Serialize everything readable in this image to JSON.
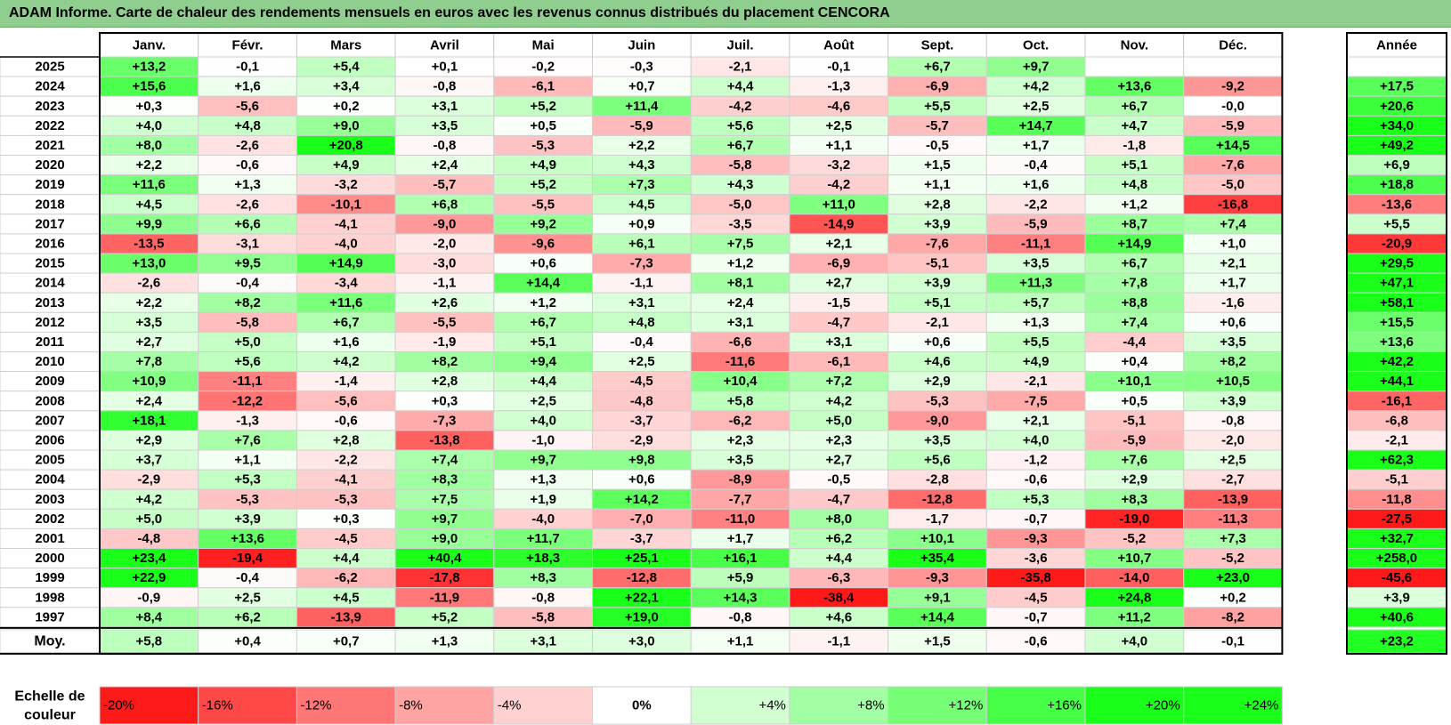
{
  "title": "ADAM Informe. Carte de chaleur des rendements mensuels en euros avec les revenus connus distribués du placement CENCORA",
  "chart_data": {
    "type": "heatmap",
    "months": [
      "Janv.",
      "Févr.",
      "Mars",
      "Avril",
      "Mai",
      "Juin",
      "Juil.",
      "Août",
      "Sept.",
      "Oct.",
      "Nov.",
      "Déc."
    ],
    "year_header": "Année",
    "rows": [
      {
        "label": "2025",
        "values": [
          "+13,2",
          "-0,1",
          "+5,4",
          "+0,1",
          "-0,2",
          "-0,3",
          "-2,1",
          "-0,1",
          "+6,7",
          "+9,7",
          "",
          ""
        ],
        "year": ""
      },
      {
        "label": "2024",
        "values": [
          "+15,6",
          "+1,6",
          "+3,4",
          "-0,8",
          "-6,1",
          "+0,7",
          "+4,4",
          "-1,3",
          "-6,9",
          "+4,2",
          "+13,6",
          "-9,2"
        ],
        "year": "+17,5"
      },
      {
        "label": "2023",
        "values": [
          "+0,3",
          "-5,6",
          "+0,2",
          "+3,1",
          "+5,2",
          "+11,4",
          "-4,2",
          "-4,6",
          "+5,5",
          "+2,5",
          "+6,7",
          "-0,0"
        ],
        "year": "+20,6"
      },
      {
        "label": "2022",
        "values": [
          "+4,0",
          "+4,8",
          "+9,0",
          "+3,5",
          "+0,5",
          "-5,9",
          "+5,6",
          "+2,5",
          "-5,7",
          "+14,7",
          "+4,7",
          "-5,9"
        ],
        "year": "+34,0"
      },
      {
        "label": "2021",
        "values": [
          "+8,0",
          "-2,6",
          "+20,8",
          "-0,8",
          "-5,3",
          "+2,2",
          "+6,7",
          "+1,1",
          "-0,5",
          "+1,7",
          "-1,8",
          "+14,5"
        ],
        "year": "+49,2"
      },
      {
        "label": "2020",
        "values": [
          "+2,2",
          "-0,6",
          "+4,9",
          "+2,4",
          "+4,9",
          "+4,3",
          "-5,8",
          "-3,2",
          "+1,5",
          "-0,4",
          "+5,1",
          "-7,6"
        ],
        "year": "+6,9"
      },
      {
        "label": "2019",
        "values": [
          "+11,6",
          "+1,3",
          "-3,2",
          "-5,7",
          "+5,2",
          "+7,3",
          "+4,3",
          "-4,2",
          "+1,1",
          "+1,6",
          "+4,8",
          "-5,0"
        ],
        "year": "+18,8"
      },
      {
        "label": "2018",
        "values": [
          "+4,5",
          "-2,6",
          "-10,1",
          "+6,8",
          "-5,5",
          "+4,5",
          "-5,0",
          "+11,0",
          "+2,8",
          "-2,2",
          "+1,2",
          "-16,8"
        ],
        "year": "-13,6"
      },
      {
        "label": "2017",
        "values": [
          "+9,9",
          "+6,6",
          "-4,1",
          "-9,0",
          "+9,2",
          "+0,9",
          "-3,5",
          "-14,9",
          "+3,9",
          "-5,9",
          "+8,7",
          "+7,4"
        ],
        "year": "+5,5"
      },
      {
        "label": "2016",
        "values": [
          "-13,5",
          "-3,1",
          "-4,0",
          "-2,0",
          "-9,6",
          "+6,1",
          "+7,5",
          "+2,1",
          "-7,6",
          "-11,1",
          "+14,9",
          "+1,0"
        ],
        "year": "-20,9"
      },
      {
        "label": "2015",
        "values": [
          "+13,0",
          "+9,5",
          "+14,9",
          "-3,0",
          "+0,6",
          "-7,3",
          "+1,2",
          "-6,9",
          "-5,1",
          "+3,5",
          "+6,7",
          "+2,1"
        ],
        "year": "+29,5"
      },
      {
        "label": "2014",
        "values": [
          "-2,6",
          "-0,4",
          "-3,4",
          "-1,1",
          "+14,4",
          "-1,1",
          "+8,1",
          "+2,7",
          "+3,9",
          "+11,3",
          "+7,8",
          "+1,7"
        ],
        "year": "+47,1"
      },
      {
        "label": "2013",
        "values": [
          "+2,2",
          "+8,2",
          "+11,6",
          "+2,6",
          "+1,2",
          "+3,1",
          "+2,4",
          "-1,5",
          "+5,1",
          "+5,7",
          "+8,8",
          "-1,6"
        ],
        "year": "+58,1"
      },
      {
        "label": "2012",
        "values": [
          "+3,5",
          "-5,8",
          "+6,7",
          "-5,5",
          "+6,7",
          "+4,8",
          "+3,1",
          "-4,7",
          "-2,1",
          "+1,3",
          "+7,4",
          "+0,6"
        ],
        "year": "+15,5"
      },
      {
        "label": "2011",
        "values": [
          "+2,7",
          "+5,0",
          "+1,6",
          "-1,9",
          "+5,1",
          "-0,4",
          "-6,6",
          "+3,1",
          "+0,6",
          "+5,5",
          "-4,4",
          "+3,5"
        ],
        "year": "+13,6"
      },
      {
        "label": "2010",
        "values": [
          "+7,8",
          "+5,6",
          "+4,2",
          "+8,2",
          "+9,4",
          "+2,5",
          "-11,6",
          "-6,1",
          "+4,6",
          "+4,9",
          "+0,4",
          "+8,2"
        ],
        "year": "+42,2"
      },
      {
        "label": "2009",
        "values": [
          "+10,9",
          "-11,1",
          "-1,4",
          "+2,8",
          "+4,4",
          "-4,5",
          "+10,4",
          "+7,2",
          "+2,9",
          "-2,1",
          "+10,1",
          "+10,5"
        ],
        "year": "+44,1"
      },
      {
        "label": "2008",
        "values": [
          "+2,4",
          "-12,2",
          "-5,6",
          "+0,3",
          "+2,5",
          "-4,8",
          "+5,8",
          "+4,2",
          "-5,3",
          "-7,5",
          "+0,5",
          "+3,9"
        ],
        "year": "-16,1"
      },
      {
        "label": "2007",
        "values": [
          "+18,1",
          "-1,3",
          "-0,6",
          "-7,3",
          "+4,0",
          "-3,7",
          "-6,2",
          "+5,0",
          "-9,0",
          "+2,1",
          "-5,1",
          "-0,8"
        ],
        "year": "-6,8"
      },
      {
        "label": "2006",
        "values": [
          "+2,9",
          "+7,6",
          "+2,8",
          "-13,8",
          "-1,0",
          "-2,9",
          "+2,3",
          "+2,3",
          "+3,5",
          "+4,0",
          "-5,9",
          "-2,0"
        ],
        "year": "-2,1"
      },
      {
        "label": "2005",
        "values": [
          "+3,7",
          "+1,1",
          "-2,2",
          "+7,4",
          "+9,7",
          "+9,8",
          "+3,5",
          "+2,7",
          "+5,6",
          "-1,2",
          "+7,6",
          "+2,5"
        ],
        "year": "+62,3"
      },
      {
        "label": "2004",
        "values": [
          "-2,9",
          "+5,3",
          "-4,1",
          "+8,3",
          "+1,3",
          "+0,6",
          "-8,9",
          "-0,5",
          "-2,8",
          "-0,6",
          "+2,9",
          "-2,7"
        ],
        "year": "-5,1"
      },
      {
        "label": "2003",
        "values": [
          "+4,2",
          "-5,3",
          "-5,3",
          "+7,5",
          "+1,9",
          "+14,2",
          "-7,7",
          "-4,7",
          "-12,8",
          "+5,3",
          "+8,3",
          "-13,9"
        ],
        "year": "-11,8"
      },
      {
        "label": "2002",
        "values": [
          "+5,0",
          "+3,9",
          "+0,3",
          "+9,7",
          "-4,0",
          "-7,0",
          "-11,0",
          "+8,0",
          "-1,7",
          "-0,7",
          "-19,0",
          "-11,3"
        ],
        "year": "-27,5"
      },
      {
        "label": "2001",
        "values": [
          "-4,8",
          "+13,6",
          "-4,5",
          "+9,0",
          "+11,7",
          "-3,7",
          "+1,7",
          "+6,2",
          "+10,1",
          "-9,3",
          "-5,2",
          "+7,3"
        ],
        "year": "+32,7"
      },
      {
        "label": "2000",
        "values": [
          "+23,4",
          "-19,4",
          "+4,4",
          "+40,4",
          "+18,3",
          "+25,1",
          "+16,1",
          "+4,4",
          "+35,4",
          "-3,6",
          "+10,7",
          "-5,2"
        ],
        "year": "+258,0"
      },
      {
        "label": "1999",
        "values": [
          "+22,9",
          "-0,4",
          "-6,2",
          "-17,8",
          "+8,3",
          "-12,8",
          "+5,9",
          "-6,3",
          "-9,3",
          "-35,8",
          "-14,0",
          "+23,0"
        ],
        "year": "-45,6"
      },
      {
        "label": "1998",
        "values": [
          "-0,9",
          "+2,5",
          "+4,5",
          "-11,9",
          "-0,8",
          "+22,1",
          "+14,3",
          "-38,4",
          "+9,1",
          "-4,5",
          "+24,8",
          "+0,2"
        ],
        "year": "+3,9"
      },
      {
        "label": "1997",
        "values": [
          "+8,4",
          "+6,2",
          "-13,9",
          "+5,2",
          "-5,8",
          "+19,0",
          "-0,8",
          "+4,6",
          "+14,4",
          "-0,7",
          "+11,2",
          "-8,2"
        ],
        "year": "+40,6"
      }
    ],
    "average": {
      "label": "Moy.",
      "values": [
        "+5,8",
        "+0,4",
        "+0,7",
        "+1,3",
        "+3,1",
        "+3,0",
        "+1,1",
        "-1,1",
        "+1,5",
        "-0,6",
        "+4,0",
        "-0,1"
      ],
      "year": "+23,2"
    },
    "scale": {
      "label_line1": "Echelle de",
      "label_line2": "couleur",
      "stops": [
        {
          "label": "-20%",
          "value": -20
        },
        {
          "label": "-16%",
          "value": -16
        },
        {
          "label": "-12%",
          "value": -12
        },
        {
          "label": "-8%",
          "value": -8
        },
        {
          "label": "-4%",
          "value": -4
        },
        {
          "label": "0%",
          "value": 0
        },
        {
          "label": "+4%",
          "value": 4
        },
        {
          "label": "+8%",
          "value": 8
        },
        {
          "label": "+12%",
          "value": 12
        },
        {
          "label": "+16%",
          "value": 16
        },
        {
          "label": "+20%",
          "value": 20
        },
        {
          "label": "+24%",
          "value": 24
        }
      ]
    },
    "colors": {
      "negative_max": "#ff1a1a",
      "positive_max": "#1aff1a",
      "neutral": "#ffffff",
      "title_bar": "#8fce8f"
    }
  }
}
